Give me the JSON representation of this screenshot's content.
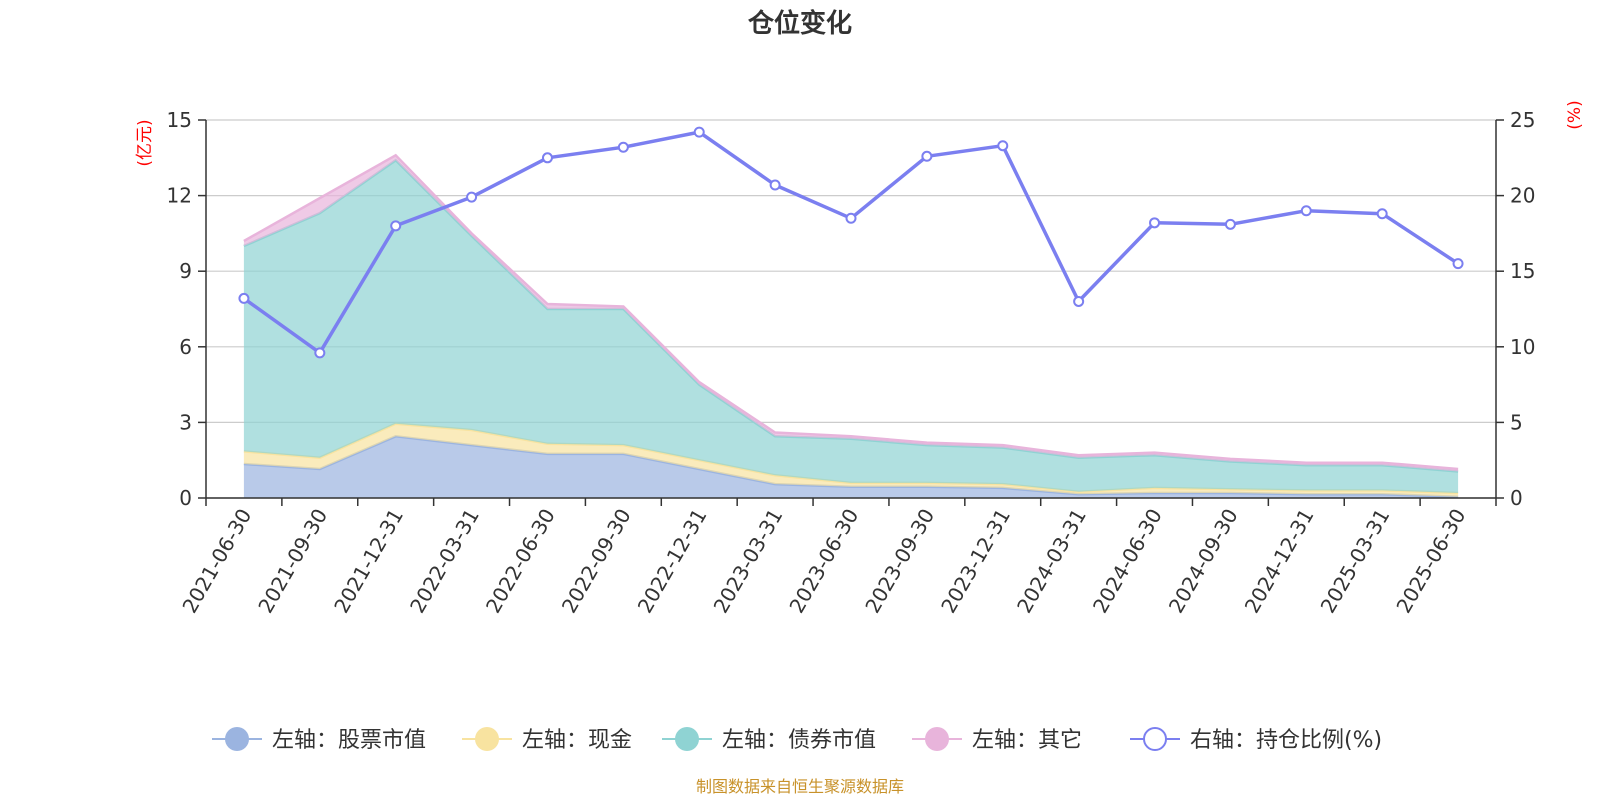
{
  "chart_data": {
    "type": "area",
    "title": "仓位变化",
    "source_note": "制图数据来自恒生聚源数据库",
    "x": [
      "2021-06-30",
      "2021-09-30",
      "2021-12-31",
      "2022-03-31",
      "2022-06-30",
      "2022-09-30",
      "2022-12-31",
      "2023-03-31",
      "2023-06-30",
      "2023-09-30",
      "2023-12-31",
      "2024-03-31",
      "2024-06-30",
      "2024-09-30",
      "2024-12-31",
      "2025-03-31",
      "2025-06-30"
    ],
    "left_axis": {
      "unit": "(亿元)",
      "ylim": [
        0,
        15
      ],
      "ticks": [
        "0",
        "3",
        "6",
        "9",
        "12",
        "15"
      ]
    },
    "right_axis": {
      "unit": "(%)",
      "ylim": [
        0,
        25
      ],
      "ticks": [
        "0",
        "5",
        "10",
        "15",
        "20",
        "25"
      ]
    },
    "grid": true,
    "legend_position": "bottom",
    "series": [
      {
        "name": "左轴：股票市值",
        "axis": "left",
        "stack": true,
        "color": "#9bb4e0",
        "values": [
          1.35,
          1.15,
          2.45,
          2.1,
          1.75,
          1.75,
          1.15,
          0.55,
          0.45,
          0.45,
          0.4,
          0.15,
          0.2,
          0.2,
          0.15,
          0.15,
          0.05
        ]
      },
      {
        "name": "左轴：现金",
        "axis": "left",
        "stack": true,
        "color": "#f8e3a0",
        "values": [
          0.5,
          0.45,
          0.5,
          0.6,
          0.4,
          0.35,
          0.35,
          0.35,
          0.15,
          0.15,
          0.15,
          0.1,
          0.2,
          0.15,
          0.15,
          0.15,
          0.15
        ]
      },
      {
        "name": "左轴：债券市值",
        "axis": "left",
        "stack": true,
        "color": "#8fd3d3",
        "values": [
          8.15,
          9.7,
          10.45,
          7.7,
          5.35,
          5.4,
          3.0,
          1.55,
          1.75,
          1.5,
          1.45,
          1.35,
          1.3,
          1.1,
          1.0,
          1.0,
          0.85
        ]
      },
      {
        "name": "左轴：其它",
        "axis": "left",
        "stack": true,
        "color": "#e8b4db",
        "values": [
          0.2,
          0.6,
          0.2,
          0.1,
          0.2,
          0.1,
          0.1,
          0.15,
          0.1,
          0.1,
          0.1,
          0.1,
          0.1,
          0.1,
          0.1,
          0.1,
          0.1
        ]
      },
      {
        "name": "右轴：持仓比例(%)",
        "axis": "right",
        "type": "line",
        "color": "#7b7ff0",
        "values": [
          13.2,
          9.6,
          18.0,
          19.9,
          22.5,
          23.2,
          24.2,
          20.7,
          18.5,
          22.6,
          23.3,
          13.0,
          18.2,
          18.1,
          19.0,
          18.8,
          15.5
        ]
      }
    ]
  }
}
